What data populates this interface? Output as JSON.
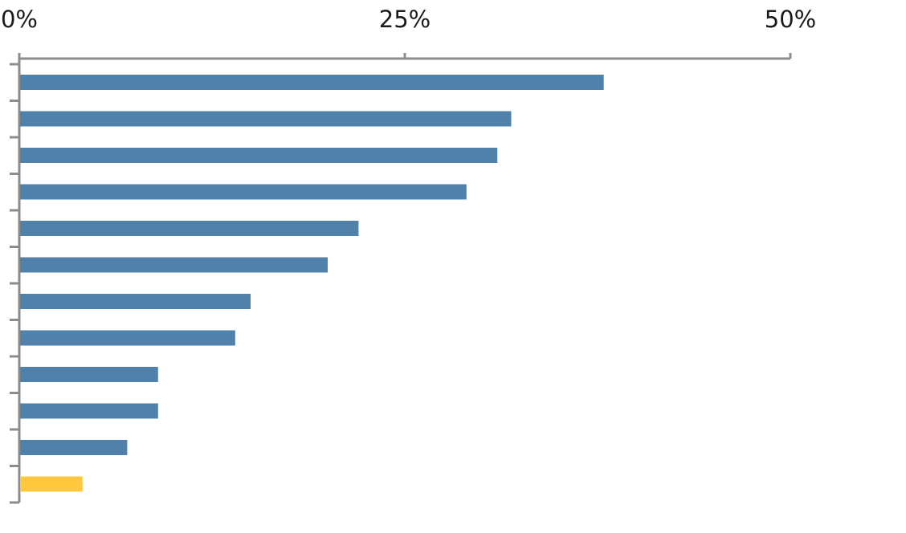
{
  "chart_data": {
    "type": "bar",
    "orientation": "horizontal",
    "title": "",
    "xlabel": "",
    "ylabel": "",
    "xlim": [
      0,
      50
    ],
    "xticks": [
      {
        "value": 0,
        "label": "0%"
      },
      {
        "value": 25,
        "label": "25%"
      },
      {
        "value": 50,
        "label": "50%"
      }
    ],
    "x_axis_position": "top",
    "grid": false,
    "legend": "none",
    "values": [
      37.9,
      31.9,
      31.0,
      29.0,
      22.0,
      20.0,
      15.0,
      14.0,
      9.0,
      9.0,
      7.0,
      4.1
    ],
    "bar_colors": [
      "#4f81aa",
      "#4f81aa",
      "#4f81aa",
      "#4f81aa",
      "#4f81aa",
      "#4f81aa",
      "#4f81aa",
      "#4f81aa",
      "#4f81aa",
      "#4f81aa",
      "#4f81aa",
      "#ffc83d"
    ],
    "axis_color": "#8c8c8c"
  }
}
